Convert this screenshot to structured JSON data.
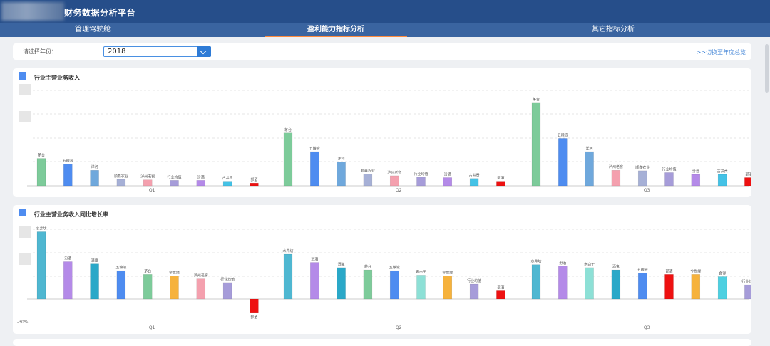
{
  "header": {
    "title": "财务数据分析平台"
  },
  "tabs": [
    {
      "label": "管理驾驶舱",
      "active": false
    },
    {
      "label": "盈利能力指标分析",
      "active": true
    },
    {
      "label": "其它指标分析",
      "active": false
    }
  ],
  "filter": {
    "year_label": "请选择年份：",
    "year_value": "2018",
    "switch_link": ">>切换至年度总览"
  },
  "colors": {
    "accent": "#ff8a3c",
    "header": "#264e8a",
    "tab_bar": "#3a64a0"
  },
  "panel1": {
    "title": "行业主营业务收入"
  },
  "panel2": {
    "title": "行业主营业务收入同比增长率"
  },
  "chart_data": [
    {
      "type": "bar",
      "groups": [
        {
          "label": "Q1",
          "bars": [
            {
              "name": "茅台",
              "value": 60,
              "color": "#7dcb9a"
            },
            {
              "name": "五粮液",
              "value": 48,
              "color": "#4e8cf0"
            },
            {
              "name": "洋河",
              "value": 34,
              "color": "#6fa8dc"
            },
            {
              "name": "顺鑫农业",
              "value": 14,
              "color": "#a6b0d6"
            },
            {
              "name": "泸州老窖",
              "value": 13,
              "color": "#f4a0ae"
            },
            {
              "name": "行业均值",
              "value": 12,
              "color": "#a69cd9"
            },
            {
              "name": "汾酒",
              "value": 12,
              "color": "#b48ae8"
            },
            {
              "name": "古井贡",
              "value": 10,
              "color": "#44c2e6"
            },
            {
              "name": "部酒",
              "value": 6,
              "color": "#ee1111"
            }
          ]
        },
        {
          "label": "Q2",
          "bars": [
            {
              "name": "茅台",
              "value": 116,
              "color": "#7dcb9a"
            },
            {
              "name": "五粮液",
              "value": 75,
              "color": "#4e8cf0"
            },
            {
              "name": "洋河",
              "value": 52,
              "color": "#6fa8dc"
            },
            {
              "name": "顺鑫农业",
              "value": 26,
              "color": "#a6b0d6"
            },
            {
              "name": "泸州老窖",
              "value": 22,
              "color": "#f4a0ae"
            },
            {
              "name": "行业均值",
              "value": 19,
              "color": "#a69cd9"
            },
            {
              "name": "汾酒",
              "value": 18,
              "color": "#b48ae8"
            },
            {
              "name": "古井贡",
              "value": 16,
              "color": "#44c2e6"
            },
            {
              "name": "部酒",
              "value": 10,
              "color": "#ee1111"
            }
          ]
        },
        {
          "label": "Q3",
          "bars": [
            {
              "name": "茅台",
              "value": 183,
              "color": "#7dcb9a"
            },
            {
              "name": "五粮液",
              "value": 104,
              "color": "#4e8cf0"
            },
            {
              "name": "洋河",
              "value": 75,
              "color": "#6fa8dc"
            },
            {
              "name": "泸州老窖",
              "value": 34,
              "color": "#f4a0ae"
            },
            {
              "name": "顺鑫农业",
              "value": 33,
              "color": "#a6b0d6"
            },
            {
              "name": "行业均值",
              "value": 29,
              "color": "#a69cd9"
            },
            {
              "name": "汾酒",
              "value": 25,
              "color": "#b48ae8"
            },
            {
              "name": "古井贡",
              "value": 25,
              "color": "#44c2e6"
            },
            {
              "name": "部酒",
              "value": 18,
              "color": "#ee1111"
            }
          ]
        }
      ],
      "ylim": [
        0,
        200
      ],
      "grid": true
    },
    {
      "type": "bar",
      "ytick_label": "-30%",
      "groups": [
        {
          "label": "Q1",
          "bars": [
            {
              "name": "水井坊",
              "value": 90,
              "color": "#4fb7d1"
            },
            {
              "name": "汾酒",
              "value": 50,
              "color": "#b48ae8"
            },
            {
              "name": "酒鬼",
              "value": 47,
              "color": "#2aa8c8"
            },
            {
              "name": "五粮液",
              "value": 38,
              "color": "#4e8cf0"
            },
            {
              "name": "茅台",
              "value": 33,
              "color": "#7dcb9a"
            },
            {
              "name": "今世缘",
              "value": 31,
              "color": "#f6b23c"
            },
            {
              "name": "泸州老窖",
              "value": 27,
              "color": "#f4a0ae"
            },
            {
              "name": "行业均值",
              "value": 22,
              "color": "#a69cd9"
            },
            {
              "name": "部酒",
              "value": -18,
              "color": "#ee1111"
            }
          ]
        },
        {
          "label": "Q2",
          "bars": [
            {
              "name": "水井坊",
              "value": 60,
              "color": "#4fb7d1"
            },
            {
              "name": "汾酒",
              "value": 49,
              "color": "#b48ae8"
            },
            {
              "name": "酒鬼",
              "value": 42,
              "color": "#2aa8c8"
            },
            {
              "name": "茅台",
              "value": 39,
              "color": "#7dcb9a"
            },
            {
              "name": "五粮液",
              "value": 38,
              "color": "#4e8cf0"
            },
            {
              "name": "老白干",
              "value": 32,
              "color": "#8de0d6"
            },
            {
              "name": "今世缘",
              "value": 31,
              "color": "#f6b23c"
            },
            {
              "name": "行业均值",
              "value": 20,
              "color": "#a69cd9"
            },
            {
              "name": "部酒",
              "value": 11,
              "color": "#ee1111"
            }
          ]
        },
        {
          "label": "Q3",
          "bars": [
            {
              "name": "水井坊",
              "value": 46,
              "color": "#4fb7d1"
            },
            {
              "name": "汾酒",
              "value": 44,
              "color": "#b48ae8"
            },
            {
              "name": "老白干",
              "value": 42,
              "color": "#8de0d6"
            },
            {
              "name": "酒鬼",
              "value": 39,
              "color": "#2aa8c8"
            },
            {
              "name": "五粮液",
              "value": 35,
              "color": "#4e8cf0"
            },
            {
              "name": "部酒",
              "value": 33,
              "color": "#ee1111"
            },
            {
              "name": "今世缘",
              "value": 33,
              "color": "#f6b23c"
            },
            {
              "name": "舍得",
              "value": 30,
              "color": "#4dd0e1"
            },
            {
              "name": "行业均值",
              "value": 19,
              "color": "#a69cd9"
            }
          ]
        }
      ],
      "grid": true
    }
  ]
}
